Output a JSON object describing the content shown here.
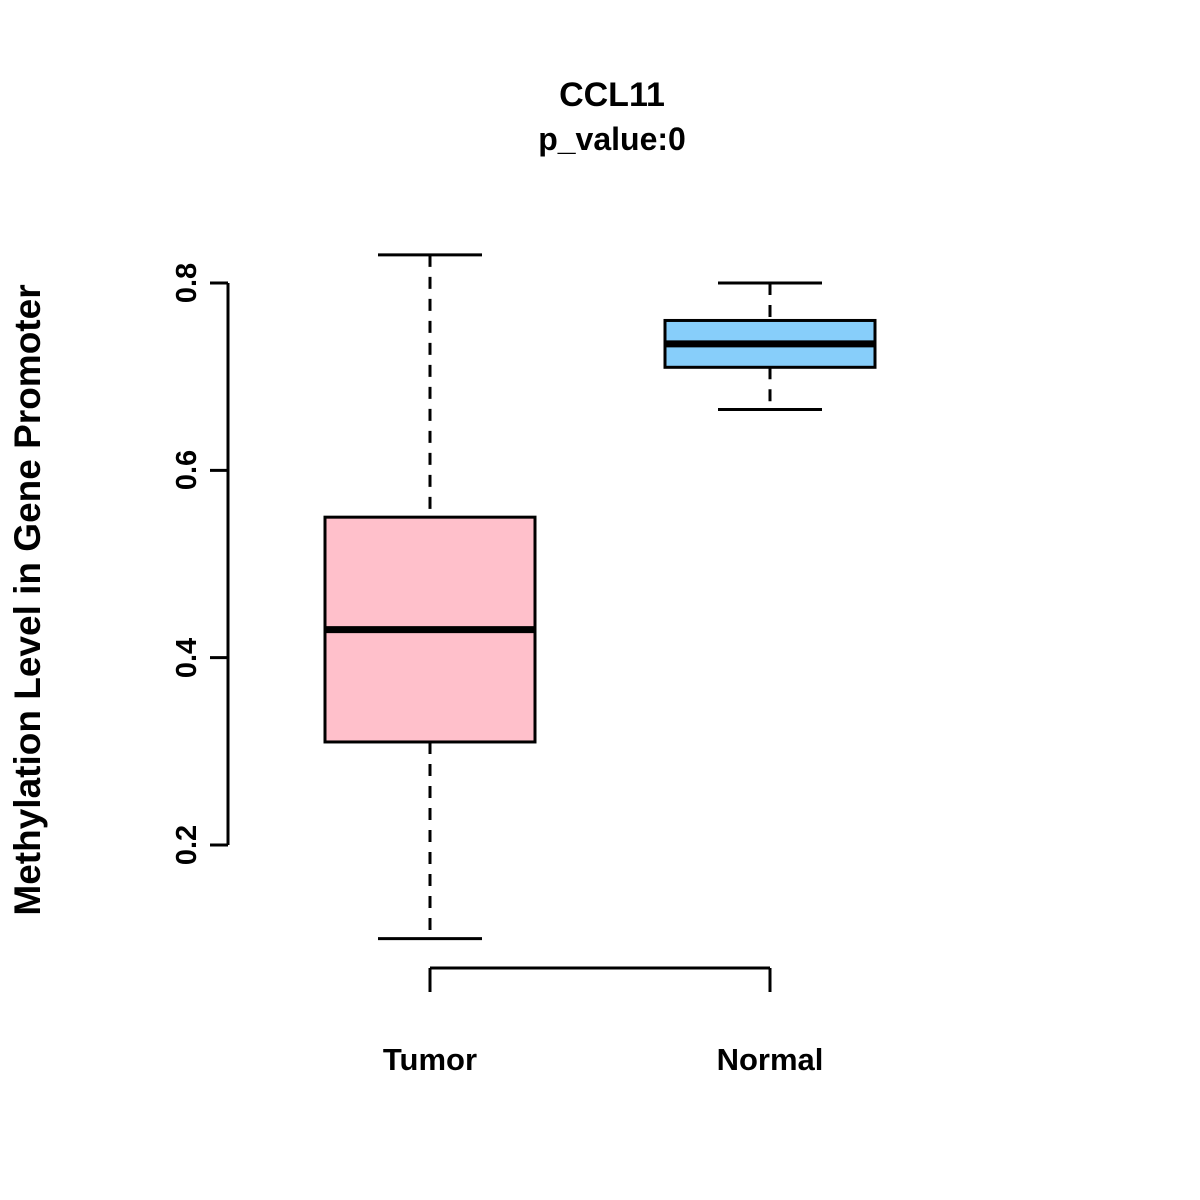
{
  "chart_data": {
    "type": "boxplot",
    "title": "CCL11",
    "subtitle": "p_value:0",
    "ylabel": "Methylation Level in Gene Promoter",
    "xlabel": "",
    "ylim": [
      0.2,
      0.8
    ],
    "yticks": [
      "0.2",
      "0.4",
      "0.6",
      "0.8"
    ],
    "ytick_values": [
      0.2,
      0.4,
      0.6,
      0.8
    ],
    "grid": false,
    "legend": "none",
    "categories": [
      "Tumor",
      "Normal"
    ],
    "series": [
      {
        "name": "Tumor",
        "min": 0.1,
        "q1": 0.31,
        "median": 0.43,
        "q3": 0.55,
        "max": 0.83,
        "fill": "#FFC0CB"
      },
      {
        "name": "Normal",
        "min": 0.665,
        "q1": 0.71,
        "median": 0.735,
        "q3": 0.76,
        "max": 0.8,
        "fill": "#87CEFA"
      }
    ],
    "colors": {
      "tumor_fill": "#FFC0CB",
      "normal_fill": "#87CEFA",
      "stroke": "#000000",
      "background": "#ffffff"
    }
  }
}
